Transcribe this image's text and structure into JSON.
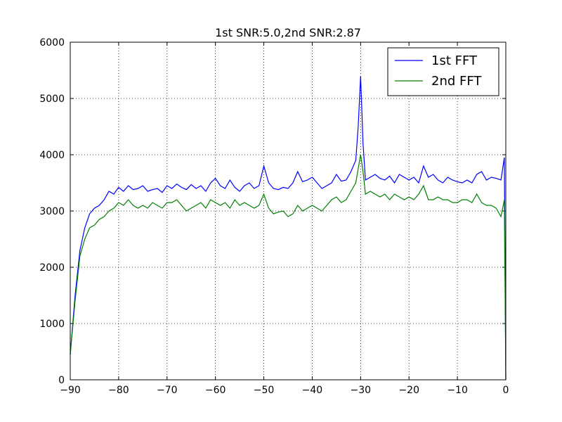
{
  "chart_data": {
    "type": "line",
    "title": "1st SNR:5.0,2nd SNR:2.87",
    "x": [
      -90,
      -89,
      -88,
      -87,
      -86,
      -85,
      -84,
      -83,
      -82,
      -81,
      -80,
      -79,
      -78,
      -77,
      -76,
      -75,
      -74,
      -73,
      -72,
      -71,
      -70,
      -69,
      -68,
      -67,
      -66,
      -65,
      -64,
      -63,
      -62,
      -61,
      -60,
      -59,
      -58,
      -57,
      -56,
      -55,
      -54,
      -53,
      -52,
      -51,
      -50,
      -49,
      -48,
      -47,
      -46,
      -45,
      -44,
      -43,
      -42,
      -41,
      -40,
      -39,
      -38,
      -37,
      -36,
      -35,
      -34,
      -33,
      -32,
      -31,
      -30.5,
      -30,
      -29.5,
      -29,
      -28,
      -27,
      -26,
      -25,
      -24,
      -23,
      -22,
      -21,
      -20,
      -19,
      -18,
      -17,
      -16,
      -15,
      -14,
      -13,
      -12,
      -11,
      -10,
      -9,
      -8,
      -7,
      -6,
      -5,
      -4,
      -3,
      -2,
      -1,
      -0.3,
      0
    ],
    "series": [
      {
        "name": "1st FFT",
        "color": "#0000ff",
        "values": [
          450,
          1500,
          2300,
          2700,
          2950,
          3050,
          3100,
          3200,
          3350,
          3300,
          3420,
          3350,
          3450,
          3380,
          3400,
          3450,
          3350,
          3380,
          3400,
          3330,
          3450,
          3400,
          3480,
          3420,
          3380,
          3470,
          3400,
          3450,
          3350,
          3500,
          3580,
          3450,
          3400,
          3550,
          3420,
          3350,
          3450,
          3500,
          3400,
          3450,
          3800,
          3500,
          3400,
          3380,
          3420,
          3400,
          3500,
          3700,
          3520,
          3550,
          3600,
          3500,
          3400,
          3450,
          3500,
          3650,
          3530,
          3550,
          3700,
          3900,
          4500,
          5400,
          4200,
          3550,
          3600,
          3650,
          3580,
          3550,
          3620,
          3500,
          3650,
          3600,
          3550,
          3600,
          3500,
          3800,
          3600,
          3650,
          3550,
          3500,
          3600,
          3550,
          3520,
          3500,
          3550,
          3500,
          3650,
          3700,
          3550,
          3600,
          3580,
          3550,
          3950,
          0
        ]
      },
      {
        "name": "2nd FFT",
        "color": "#008000",
        "values": [
          450,
          1400,
          2200,
          2500,
          2700,
          2750,
          2850,
          2900,
          3000,
          3050,
          3150,
          3100,
          3200,
          3100,
          3050,
          3100,
          3050,
          3150,
          3100,
          3050,
          3150,
          3150,
          3200,
          3100,
          3000,
          3050,
          3100,
          3150,
          3050,
          3200,
          3150,
          3100,
          3150,
          3050,
          3200,
          3100,
          3150,
          3100,
          3050,
          3100,
          3300,
          3050,
          2950,
          2980,
          3000,
          2900,
          2950,
          3100,
          3000,
          3050,
          3100,
          3050,
          3000,
          3100,
          3200,
          3250,
          3150,
          3200,
          3350,
          3500,
          3750,
          4000,
          3700,
          3300,
          3350,
          3300,
          3250,
          3300,
          3200,
          3300,
          3250,
          3200,
          3250,
          3200,
          3300,
          3450,
          3200,
          3200,
          3250,
          3200,
          3200,
          3150,
          3150,
          3200,
          3200,
          3150,
          3300,
          3150,
          3100,
          3100,
          3050,
          2900,
          3200,
          0
        ]
      }
    ],
    "xlim": [
      -90,
      0
    ],
    "xticks": [
      {
        "value": -90,
        "label": "−90"
      },
      {
        "value": -80,
        "label": "−80"
      },
      {
        "value": -70,
        "label": "−70"
      },
      {
        "value": -60,
        "label": "−60"
      },
      {
        "value": -50,
        "label": "−50"
      },
      {
        "value": -40,
        "label": "−40"
      },
      {
        "value": -30,
        "label": "−30"
      },
      {
        "value": -20,
        "label": "−20"
      },
      {
        "value": -10,
        "label": "−10"
      },
      0
    ],
    "ylim": [
      0,
      6000
    ],
    "yticks": [
      0,
      1000,
      2000,
      3000,
      4000,
      5000,
      6000
    ],
    "grid": true,
    "legend": "upper right"
  }
}
